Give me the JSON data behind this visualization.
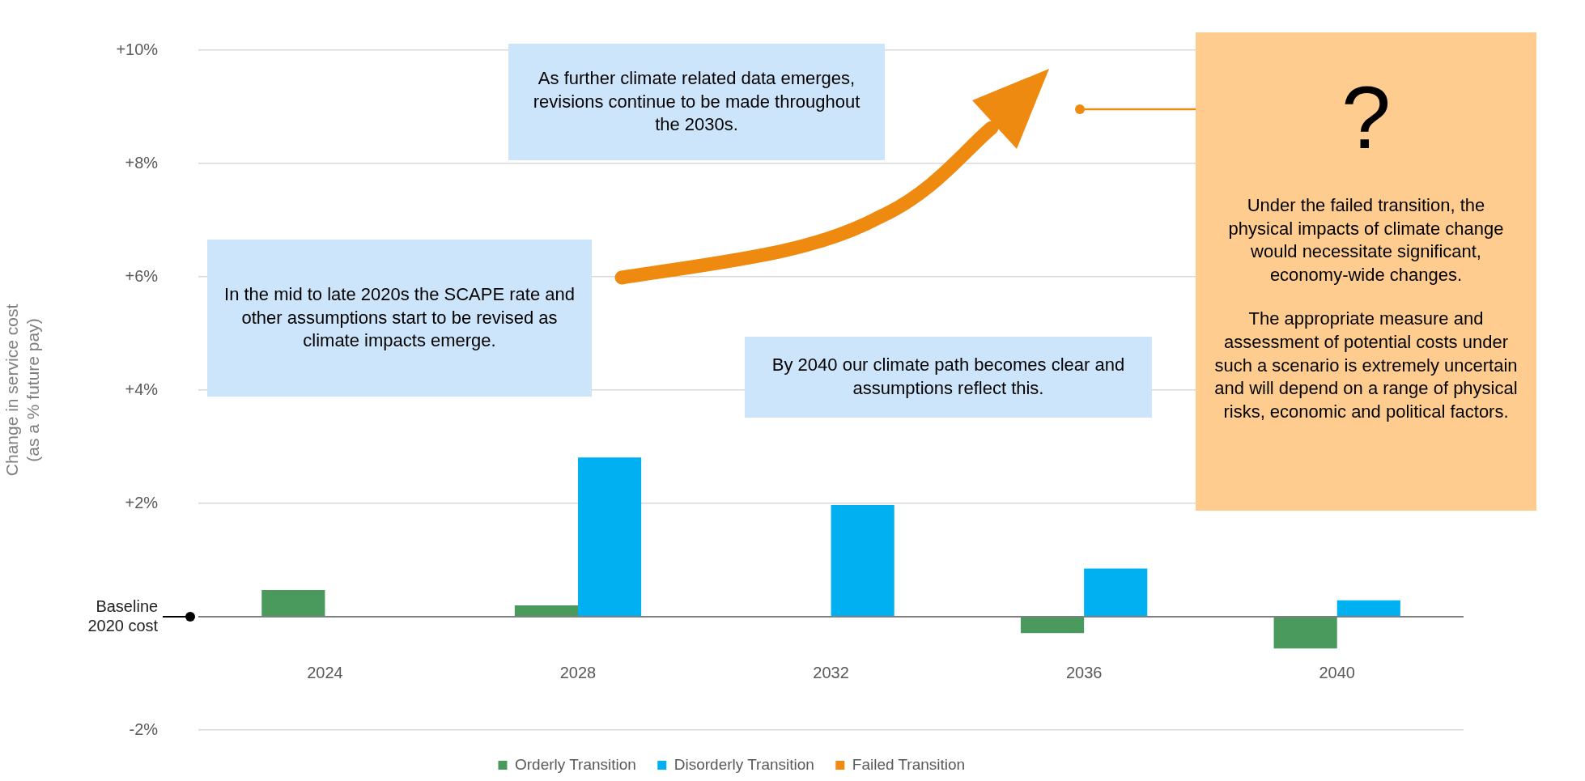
{
  "chart_data": {
    "type": "bar",
    "categories": [
      "2024",
      "2028",
      "2032",
      "2036",
      "2040"
    ],
    "series": [
      {
        "name": "Orderly Transition",
        "color": "#4a9a5e",
        "values": [
          0.47,
          0.2,
          null,
          -0.29,
          -0.56
        ]
      },
      {
        "name": "Disorderly Transition",
        "color": "#00b0f0",
        "values": [
          null,
          2.81,
          1.97,
          0.85,
          0.29
        ]
      },
      {
        "name": "Failed Transition",
        "color": "#f08a10",
        "values": [
          null,
          null,
          null,
          null,
          null
        ]
      }
    ],
    "ylabel": "Change in service cost\n(as a % future pay)",
    "ylim": [
      -2,
      10
    ],
    "yticks": [
      {
        "value": -2,
        "label": "-2%"
      },
      {
        "value": 0,
        "label": "Baseline\n2020 cost"
      },
      {
        "value": 2,
        "label": "+2%"
      },
      {
        "value": 4,
        "label": "+4%"
      },
      {
        "value": 6,
        "label": "+6%"
      },
      {
        "value": 8,
        "label": "+8%"
      },
      {
        "value": 10,
        "label": "+10%"
      }
    ],
    "grid": "y",
    "legend": "bottom",
    "annotations": [
      "In the mid to late 2020s the SCAPE rate and other assumptions start to be revised as climate impacts emerge.",
      "As further climate related data emerges, revisions continue to be made throughout the 2030s.",
      "By 2040 our climate path becomes clear and assumptions reflect this.",
      "?",
      "Under the failed transition, the physical impacts of climate change would necessitate significant, economy-wide changes.",
      "The appropriate measure and assessment of potential costs under such a scenario is extremely uncertain and will depend on a range of physical risks, economic and political factors."
    ]
  }
}
